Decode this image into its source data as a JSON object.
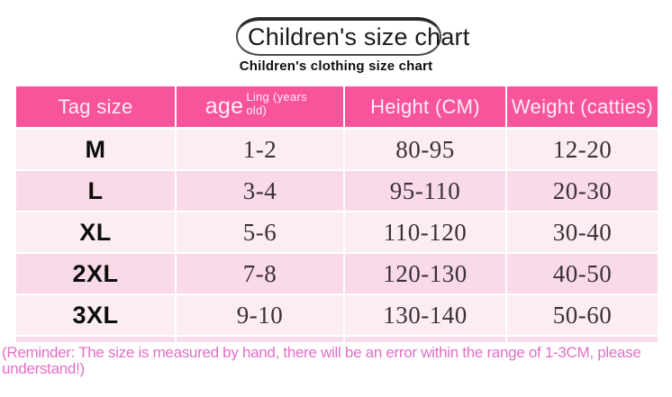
{
  "header": {
    "bubble_title": "Children's size chart",
    "subtitle": "Children's clothing size chart"
  },
  "chart_data": {
    "type": "table",
    "title": "Children's size chart",
    "subtitle": "Children's clothing size chart",
    "columns": [
      {
        "label": "Tag size"
      },
      {
        "label": "age",
        "sublabel": "Ling (years old)"
      },
      {
        "label": "Height (CM)"
      },
      {
        "label": "Weight (catties)"
      }
    ],
    "rows": [
      {
        "size": "M",
        "age": "1-2",
        "height_cm": "80-95",
        "weight_catties": "12-20"
      },
      {
        "size": "L",
        "age": "3-4",
        "height_cm": "95-110",
        "weight_catties": "20-30"
      },
      {
        "size": "XL",
        "age": "5-6",
        "height_cm": "110-120",
        "weight_catties": "30-40"
      },
      {
        "size": "2XL",
        "age": "7-8",
        "height_cm": "120-130",
        "weight_catties": "40-50"
      },
      {
        "size": "3XL",
        "age": "9-10",
        "height_cm": "130-140",
        "weight_catties": "50-60"
      }
    ],
    "note": "(Reminder: The size is measured by hand, there will be an error within the range of 1-3CM, please understand!)"
  },
  "footer": {
    "note": "(Reminder: The size is measured by hand, there will be an error within the range of 1-3CM, please understand!)"
  },
  "colors": {
    "header-pink": "#f8549b",
    "header-text": "#ffeef5",
    "row-light": "#fcedf4",
    "row-dark": "#fad9e8",
    "strip-pink": "#f9dcea",
    "note-pink": "#e46ec8"
  }
}
